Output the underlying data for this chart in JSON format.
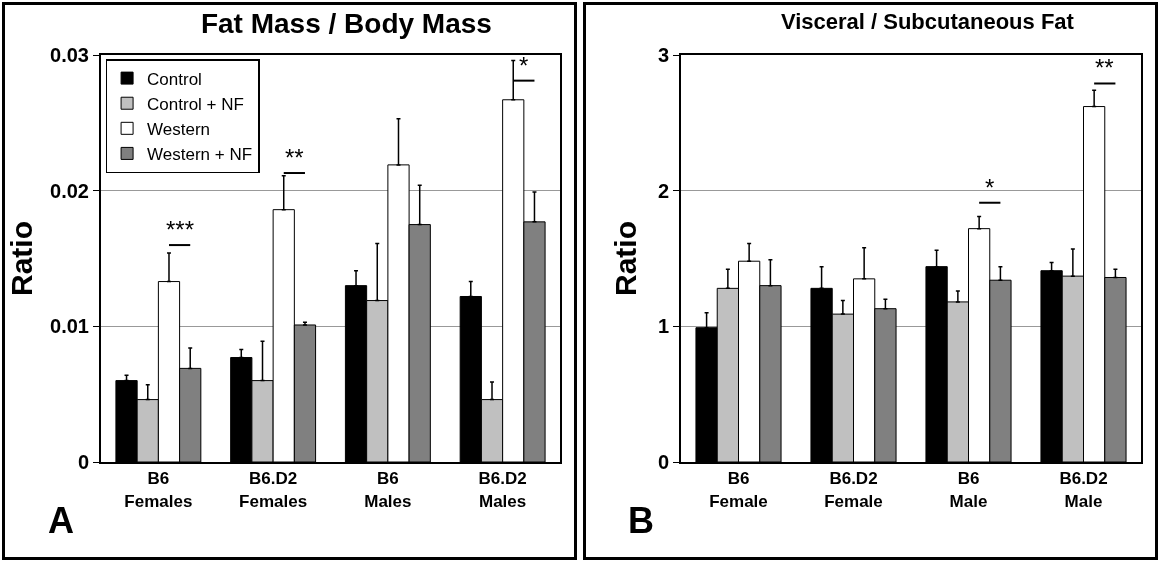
{
  "chart_data": [
    {
      "type": "bar",
      "title": "Fat Mass / Body Mass",
      "ylabel": "Ratio",
      "categories": [
        "B6\nFemales",
        "B6.D2\nFemales",
        "B6\nMales",
        "B6.D2\nMales"
      ],
      "series": [
        {
          "name": "Control",
          "color": "#000000",
          "values": [
            0.006,
            0.0077,
            0.013,
            0.0122
          ],
          "errors": [
            [
              0.006,
              0.0064
            ],
            [
              0.0077,
              0.0083
            ],
            [
              0.013,
              0.0141
            ],
            [
              0.0122,
              0.0133
            ]
          ]
        },
        {
          "name": "Control + NF",
          "color": "#c0c0c0",
          "values": [
            0.0046,
            0.006,
            0.0119,
            0.0046
          ],
          "errors": [
            [
              0.0046,
              0.0057
            ],
            [
              0.006,
              0.0089
            ],
            [
              0.0119,
              0.0161
            ],
            [
              0.0046,
              0.0059
            ]
          ]
        },
        {
          "name": "Western",
          "color": "#ffffff",
          "values": [
            0.0133,
            0.0186,
            0.0219,
            0.0267
          ],
          "errors": [
            [
              0.0133,
              0.0154
            ],
            [
              0.0186,
              0.0211
            ],
            [
              0.0219,
              0.0253
            ],
            [
              0.0267,
              0.0296
            ]
          ]
        },
        {
          "name": "Western + NF",
          "color": "#808080",
          "values": [
            0.0069,
            0.0101,
            0.0175,
            0.0177
          ],
          "errors": [
            [
              0.0069,
              0.0084
            ],
            [
              0.0101,
              0.0103
            ],
            [
              0.0175,
              0.0204
            ],
            [
              0.0177,
              0.0199
            ]
          ]
        }
      ],
      "ylim": [
        0,
        0.03
      ],
      "yticks": [
        0,
        0.01,
        0.02,
        0.03
      ],
      "grid": "y",
      "legend": "top left",
      "annotations": [
        "***",
        "**",
        "*",
        "A"
      ]
    },
    {
      "type": "bar",
      "title": "Visceral / Subcutaneous Fat",
      "ylabel": "Ratio",
      "categories": [
        "B6\nFemale",
        "B6.D2\nFemale",
        "B6\nMale",
        "B6.D2\nMale"
      ],
      "series": [
        {
          "color": "#000000",
          "values": [
            0.99,
            1.28,
            1.44,
            1.41
          ],
          "errors": [
            [
              0.99,
              1.1
            ],
            [
              1.28,
              1.44
            ],
            [
              1.44,
              1.56
            ],
            [
              1.41,
              1.47
            ]
          ]
        },
        {
          "color": "#c0c0c0",
          "values": [
            1.28,
            1.09,
            1.18,
            1.37
          ],
          "errors": [
            [
              1.28,
              1.42
            ],
            [
              1.09,
              1.19
            ],
            [
              1.18,
              1.26
            ],
            [
              1.37,
              1.57
            ]
          ]
        },
        {
          "color": "#ffffff",
          "values": [
            1.48,
            1.35,
            1.72,
            2.62
          ],
          "errors": [
            [
              1.48,
              1.61
            ],
            [
              1.35,
              1.58
            ],
            [
              1.72,
              1.81
            ],
            [
              2.62,
              2.74
            ]
          ]
        },
        {
          "color": "#808080",
          "values": [
            1.3,
            1.13,
            1.34,
            1.36
          ],
          "errors": [
            [
              1.3,
              1.49
            ],
            [
              1.13,
              1.2
            ],
            [
              1.34,
              1.44
            ],
            [
              1.36,
              1.42
            ]
          ]
        }
      ],
      "ylim": [
        0,
        3
      ],
      "yticks": [
        0,
        1,
        2,
        3
      ],
      "grid": "y",
      "legend": false,
      "annotations": [
        "*",
        "**",
        "B"
      ]
    }
  ]
}
